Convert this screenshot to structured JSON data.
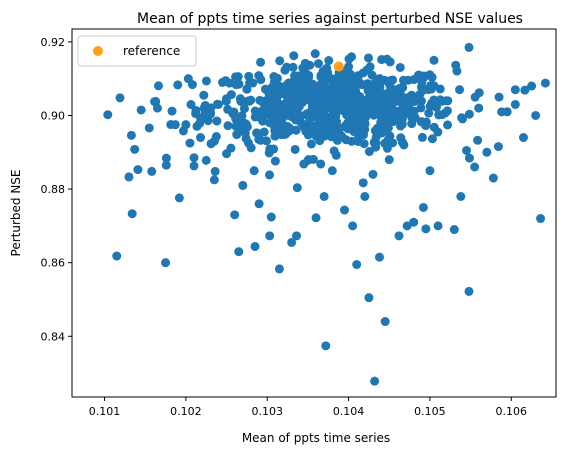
{
  "chart_data": {
    "type": "scatter",
    "title": "Mean of ppts time series against perturbed NSE values",
    "xlabel": "Mean of ppts time series",
    "ylabel": "Perturbed NSE",
    "xlim": [
      100.6,
      106.55
    ],
    "ylim": [
      0.8235,
      0.9235
    ],
    "x_scale_display": 0.001,
    "xticks": [
      101,
      102,
      103,
      104,
      105,
      106
    ],
    "xtick_labels": [
      "0.101",
      "0.102",
      "0.103",
      "0.104",
      "0.105",
      "0.106"
    ],
    "yticks": [
      0.84,
      0.86,
      0.88,
      0.9,
      0.92
    ],
    "ytick_labels": [
      "0.84",
      "0.86",
      "0.88",
      "0.90",
      "0.92"
    ],
    "legend": {
      "position": "top-left",
      "entries": [
        {
          "name": "reference",
          "color": "#ff9f1a"
        }
      ]
    },
    "series": [
      {
        "color": "#1f77b4",
        "x": [
          101.04,
          101.15,
          101.19,
          101.34,
          101.33,
          101.37,
          101.3,
          101.45,
          101.41,
          101.55,
          101.58,
          101.65,
          101.75,
          101.76,
          101.83,
          101.87,
          101.9,
          101.92,
          101.97,
          102.0,
          102.05,
          102.1,
          102.12,
          102.18,
          102.22,
          102.25,
          102.3,
          102.35,
          102.36,
          102.4,
          102.5,
          102.6,
          102.65,
          102.7,
          102.75,
          102.84,
          102.85,
          102.9,
          102.92,
          103.03,
          103.05,
          103.1,
          103.15,
          103.2,
          103.3,
          103.36,
          103.4,
          103.45,
          103.5,
          103.6,
          103.7,
          103.8,
          103.88,
          103.95,
          104.05,
          104.1,
          104.18,
          104.2,
          104.3,
          104.38,
          104.45,
          104.5,
          104.62,
          104.68,
          104.72,
          104.8,
          104.92,
          104.95,
          105.0,
          105.1,
          105.2,
          105.3,
          105.38,
          105.45,
          105.55,
          105.6,
          105.7,
          105.78,
          105.85,
          105.95,
          106.05,
          106.15,
          106.25,
          106.3,
          106.36,
          106.42,
          101.76,
          102.03,
          103.17,
          103.59,
          104.07,
          104.27,
          104.4,
          104.25,
          104.45,
          104.32,
          105.05,
          105.22,
          105.48,
          103.72,
          102.65,
          102.35,
          104.9,
          105.48,
          106.05
        ],
        "y": [
          0.9002,
          0.8618,
          0.9048,
          0.8733,
          0.8946,
          0.8908,
          0.8833,
          0.9015,
          0.8853,
          0.8966,
          0.8848,
          0.902,
          0.86,
          0.8865,
          0.9012,
          0.8975,
          0.9083,
          0.8776,
          0.8958,
          0.8975,
          0.8925,
          0.8863,
          0.9005,
          0.894,
          0.9055,
          0.8878,
          0.901,
          0.8825,
          0.8848,
          0.903,
          0.8896,
          0.873,
          0.896,
          0.881,
          0.9072,
          0.885,
          0.8644,
          0.876,
          0.901,
          0.8673,
          0.8724,
          0.8876,
          0.8583,
          0.895,
          0.8655,
          0.8673,
          0.9095,
          0.8868,
          0.8878,
          0.8722,
          0.878,
          0.885,
          0.896,
          0.8743,
          0.87,
          0.8595,
          0.8817,
          0.878,
          0.884,
          0.8615,
          0.899,
          0.888,
          0.8673,
          0.892,
          0.87,
          0.871,
          0.875,
          0.8692,
          0.885,
          0.87,
          0.904,
          0.869,
          0.878,
          0.8905,
          0.886,
          0.902,
          0.89,
          0.883,
          0.905,
          0.901,
          0.903,
          0.894,
          0.908,
          0.9,
          0.872,
          0.9088,
          0.8884,
          0.91,
          0.9018,
          0.9168,
          0.901,
          0.903,
          0.906,
          0.8505,
          0.844,
          0.8278,
          0.915,
          0.904,
          0.9185,
          0.8374,
          0.863,
          0.893,
          0.909,
          0.8522,
          0.907
        ]
      },
      {
        "name": "reference",
        "color": "#ff9f1a",
        "x": [
          103.88
        ],
        "y": [
          0.9133
        ]
      }
    ]
  },
  "cloud_generation": {
    "count": 700,
    "x_mean": 103.8,
    "x_sd": 0.75,
    "y_mean": 0.9025,
    "y_sd": 0.0055,
    "x_min": 101.5,
    "x_max": 106.2,
    "y_min": 0.874,
    "y_max": 0.917
  }
}
